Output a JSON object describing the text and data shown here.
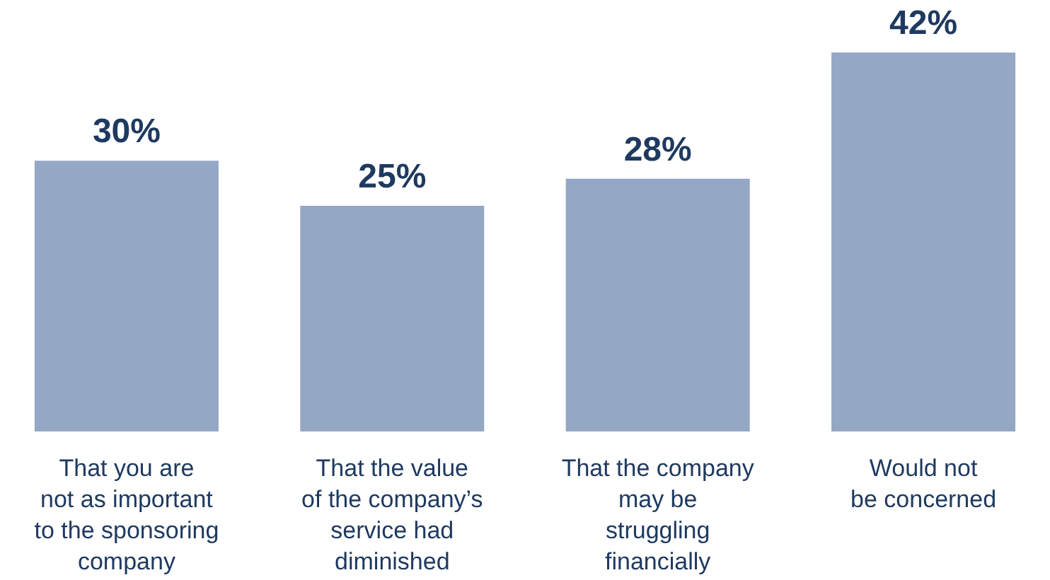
{
  "chart_data": {
    "type": "bar",
    "categories": [
      "That you are\nnot as important\nto the sponsoring\ncompany",
      "That the value\nof the company’s\nservice had\ndiminished",
      "That the company\nmay be\nstruggling\nfinancially",
      "Would not\nbe concerned"
    ],
    "values": [
      30,
      25,
      28,
      42
    ],
    "value_labels": [
      "30%",
      "25%",
      "28%",
      "42%"
    ],
    "color": "#94a7c4",
    "grid": false
  }
}
